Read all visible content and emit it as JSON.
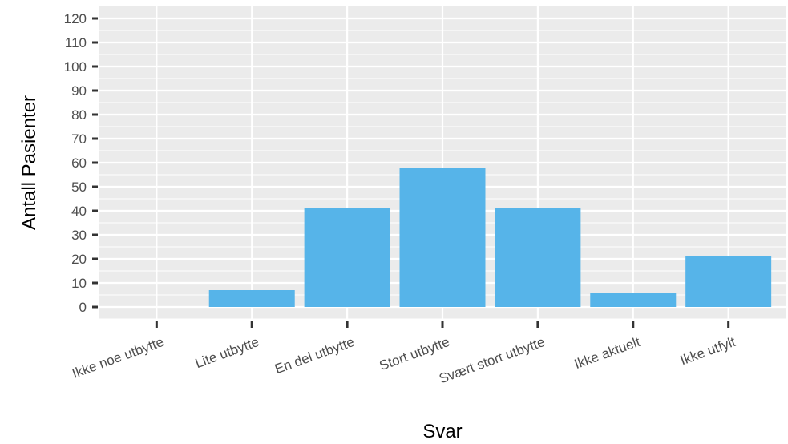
{
  "chart_data": {
    "type": "bar",
    "categories": [
      "Ikke noe utbytte",
      "Lite utbytte",
      "En del utbytte",
      "Stort utbytte",
      "Svært stort utbytte",
      "Ikke aktuelt",
      "Ikke utfylt"
    ],
    "values": [
      0,
      7,
      41,
      58,
      41,
      6,
      21
    ],
    "xlabel": "Svar",
    "ylabel": "Antall Pasienter",
    "ylim": [
      -5,
      125
    ],
    "yticks": [
      0,
      10,
      20,
      30,
      40,
      50,
      60,
      70,
      80,
      90,
      100,
      110,
      120
    ],
    "grid": true,
    "colors": {
      "bar": "#56B4E9",
      "panel": "#EBEBEB",
      "grid": "#FFFFFF",
      "ticks": "#333333"
    }
  }
}
